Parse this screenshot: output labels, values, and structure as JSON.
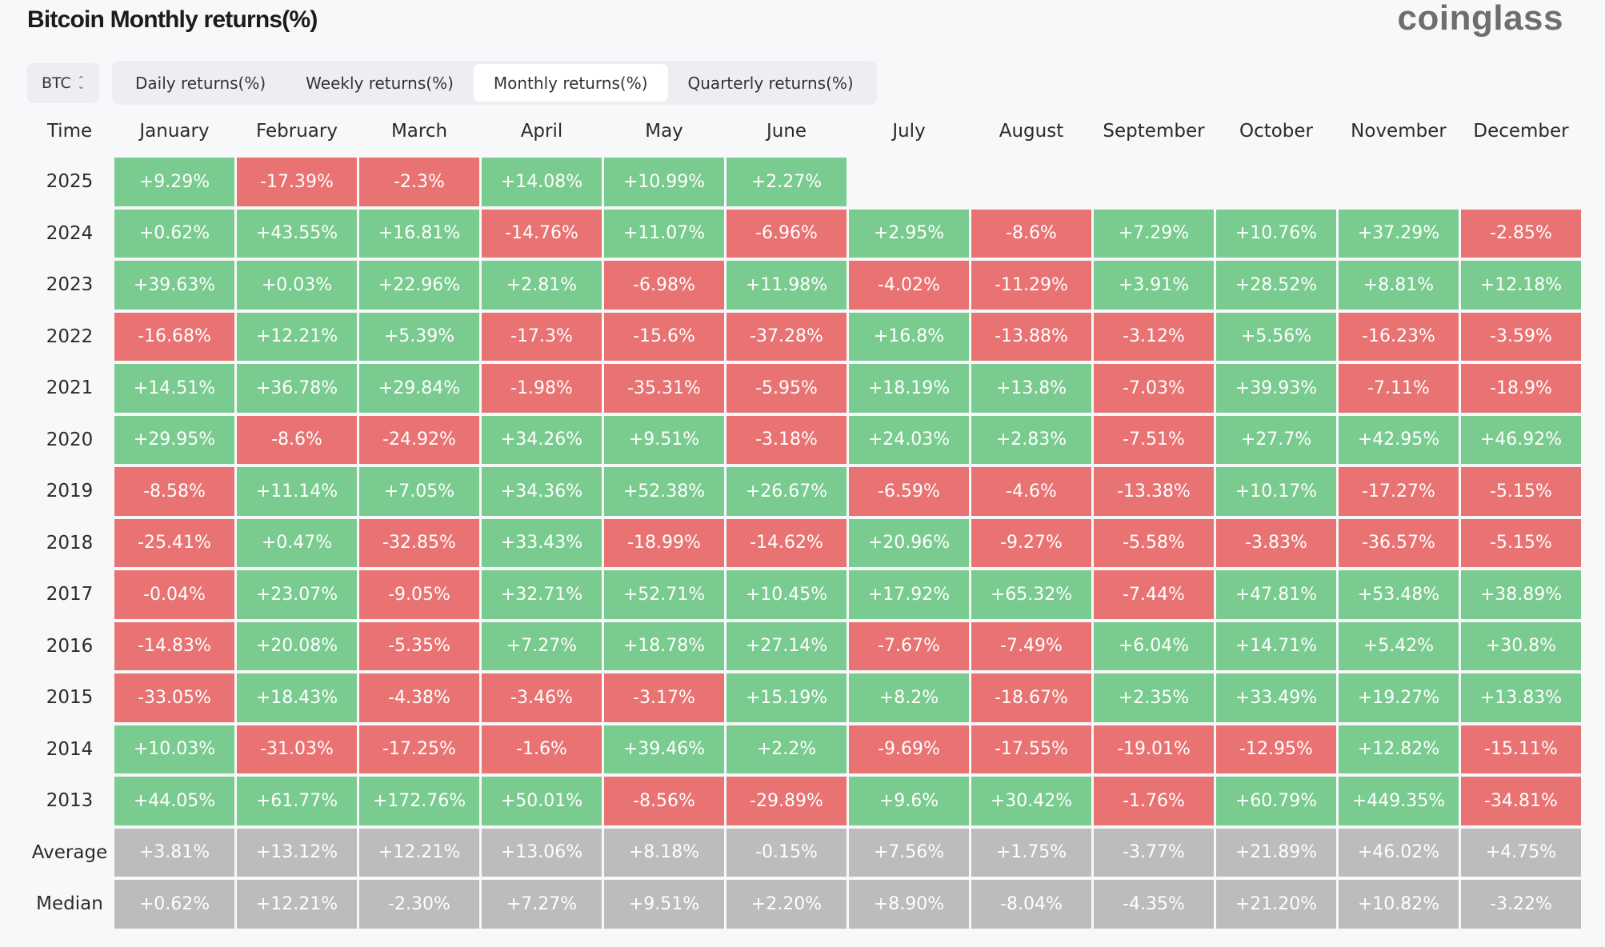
{
  "title": "Bitcoin Monthly returns(%)",
  "logo": "coinglass",
  "coin_select": {
    "value": "BTC"
  },
  "tabs": [
    {
      "label": "Daily returns(%)",
      "active": false
    },
    {
      "label": "Weekly returns(%)",
      "active": false
    },
    {
      "label": "Monthly returns(%)",
      "active": true
    },
    {
      "label": "Quarterly returns(%)",
      "active": false
    }
  ],
  "colors": {
    "positive": "#7acb8f",
    "negative": "#e97272",
    "stat": "#bcbcbc"
  },
  "chart_data": {
    "type": "heatmap",
    "corner_label": "Time",
    "columns": [
      "January",
      "February",
      "March",
      "April",
      "May",
      "June",
      "July",
      "August",
      "September",
      "October",
      "November",
      "December"
    ],
    "rows": [
      {
        "label": "2025",
        "values": [
          "+9.29%",
          "-17.39%",
          "-2.3%",
          "+14.08%",
          "+10.99%",
          "+2.27%",
          "",
          "",
          "",
          "",
          "",
          ""
        ]
      },
      {
        "label": "2024",
        "values": [
          "+0.62%",
          "+43.55%",
          "+16.81%",
          "-14.76%",
          "+11.07%",
          "-6.96%",
          "+2.95%",
          "-8.6%",
          "+7.29%",
          "+10.76%",
          "+37.29%",
          "-2.85%"
        ]
      },
      {
        "label": "2023",
        "values": [
          "+39.63%",
          "+0.03%",
          "+22.96%",
          "+2.81%",
          "-6.98%",
          "+11.98%",
          "-4.02%",
          "-11.29%",
          "+3.91%",
          "+28.52%",
          "+8.81%",
          "+12.18%"
        ]
      },
      {
        "label": "2022",
        "values": [
          "-16.68%",
          "+12.21%",
          "+5.39%",
          "-17.3%",
          "-15.6%",
          "-37.28%",
          "+16.8%",
          "-13.88%",
          "-3.12%",
          "+5.56%",
          "-16.23%",
          "-3.59%"
        ]
      },
      {
        "label": "2021",
        "values": [
          "+14.51%",
          "+36.78%",
          "+29.84%",
          "-1.98%",
          "-35.31%",
          "-5.95%",
          "+18.19%",
          "+13.8%",
          "-7.03%",
          "+39.93%",
          "-7.11%",
          "-18.9%"
        ]
      },
      {
        "label": "2020",
        "values": [
          "+29.95%",
          "-8.6%",
          "-24.92%",
          "+34.26%",
          "+9.51%",
          "-3.18%",
          "+24.03%",
          "+2.83%",
          "-7.51%",
          "+27.7%",
          "+42.95%",
          "+46.92%"
        ]
      },
      {
        "label": "2019",
        "values": [
          "-8.58%",
          "+11.14%",
          "+7.05%",
          "+34.36%",
          "+52.38%",
          "+26.67%",
          "-6.59%",
          "-4.6%",
          "-13.38%",
          "+10.17%",
          "-17.27%",
          "-5.15%"
        ]
      },
      {
        "label": "2018",
        "values": [
          "-25.41%",
          "+0.47%",
          "-32.85%",
          "+33.43%",
          "-18.99%",
          "-14.62%",
          "+20.96%",
          "-9.27%",
          "-5.58%",
          "-3.83%",
          "-36.57%",
          "-5.15%"
        ]
      },
      {
        "label": "2017",
        "values": [
          "-0.04%",
          "+23.07%",
          "-9.05%",
          "+32.71%",
          "+52.71%",
          "+10.45%",
          "+17.92%",
          "+65.32%",
          "-7.44%",
          "+47.81%",
          "+53.48%",
          "+38.89%"
        ]
      },
      {
        "label": "2016",
        "values": [
          "-14.83%",
          "+20.08%",
          "-5.35%",
          "+7.27%",
          "+18.78%",
          "+27.14%",
          "-7.67%",
          "-7.49%",
          "+6.04%",
          "+14.71%",
          "+5.42%",
          "+30.8%"
        ]
      },
      {
        "label": "2015",
        "values": [
          "-33.05%",
          "+18.43%",
          "-4.38%",
          "-3.46%",
          "-3.17%",
          "+15.19%",
          "+8.2%",
          "-18.67%",
          "+2.35%",
          "+33.49%",
          "+19.27%",
          "+13.83%"
        ]
      },
      {
        "label": "2014",
        "values": [
          "+10.03%",
          "-31.03%",
          "-17.25%",
          "-1.6%",
          "+39.46%",
          "+2.2%",
          "-9.69%",
          "-17.55%",
          "-19.01%",
          "-12.95%",
          "+12.82%",
          "-15.11%"
        ]
      },
      {
        "label": "2013",
        "values": [
          "+44.05%",
          "+61.77%",
          "+172.76%",
          "+50.01%",
          "-8.56%",
          "-29.89%",
          "+9.6%",
          "+30.42%",
          "-1.76%",
          "+60.79%",
          "+449.35%",
          "-34.81%"
        ]
      },
      {
        "label": "Average",
        "stat": true,
        "values": [
          "+3.81%",
          "+13.12%",
          "+12.21%",
          "+13.06%",
          "+8.18%",
          "-0.15%",
          "+7.56%",
          "+1.75%",
          "-3.77%",
          "+21.89%",
          "+46.02%",
          "+4.75%"
        ]
      },
      {
        "label": "Median",
        "stat": true,
        "values": [
          "+0.62%",
          "+12.21%",
          "-2.30%",
          "+7.27%",
          "+9.51%",
          "+2.20%",
          "+8.90%",
          "-8.04%",
          "-4.35%",
          "+21.20%",
          "+10.82%",
          "-3.22%"
        ]
      }
    ]
  }
}
